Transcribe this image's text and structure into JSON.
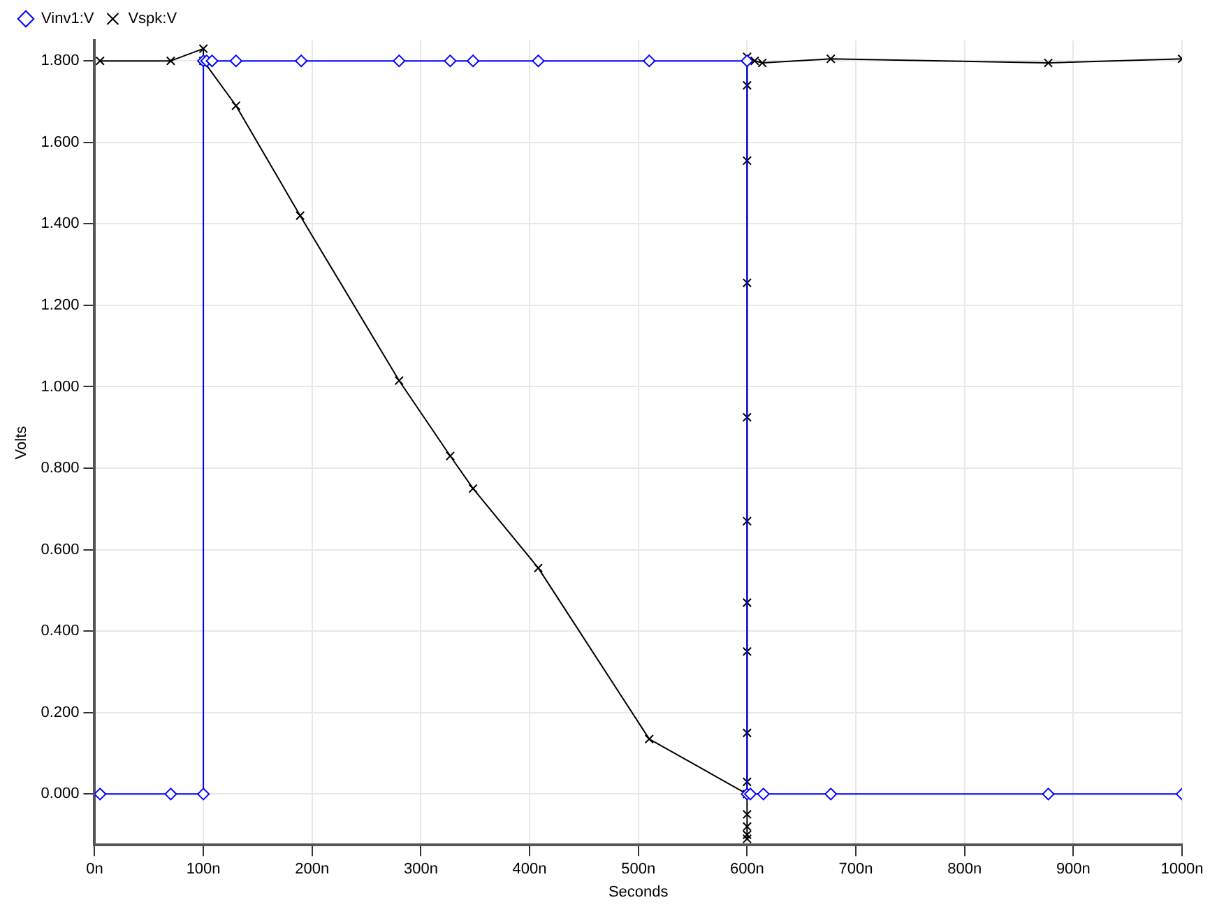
{
  "chart_data": {
    "type": "line",
    "xlabel": "Seconds",
    "ylabel": "Volts",
    "xlim": [
      0,
      1000
    ],
    "ylim": [
      -0.125,
      1.85
    ],
    "xticks": [
      {
        "value": 0,
        "label": "0n"
      },
      {
        "value": 100,
        "label": "100n"
      },
      {
        "value": 200,
        "label": "200n"
      },
      {
        "value": 300,
        "label": "300n"
      },
      {
        "value": 400,
        "label": "400n"
      },
      {
        "value": 500,
        "label": "500n"
      },
      {
        "value": 600,
        "label": "600n"
      },
      {
        "value": 700,
        "label": "700n"
      },
      {
        "value": 800,
        "label": "800n"
      },
      {
        "value": 900,
        "label": "900n"
      },
      {
        "value": 1000,
        "label": "1000n"
      }
    ],
    "yticks": [
      {
        "value": 0,
        "label": "0.000"
      },
      {
        "value": 0.2,
        "label": "0.200"
      },
      {
        "value": 0.4,
        "label": "0.400"
      },
      {
        "value": 0.6,
        "label": "0.600"
      },
      {
        "value": 0.8,
        "label": "0.800"
      },
      {
        "value": 1,
        "label": "1.000"
      },
      {
        "value": 1.2,
        "label": "1.200"
      },
      {
        "value": 1.4,
        "label": "1.400"
      },
      {
        "value": 1.6,
        "label": "1.600"
      },
      {
        "value": 1.8,
        "label": "1.800"
      }
    ],
    "grid": true,
    "legend": "top left",
    "line_style": "solid",
    "series": [
      {
        "name": "Vinv1:V",
        "color": "#0000ff",
        "marker": "diamond",
        "x": [
          5,
          70,
          100,
          100,
          103,
          108,
          130,
          190,
          280,
          327,
          348,
          408,
          510,
          600,
          600,
          603,
          615,
          677,
          877,
          1000
        ],
        "values": [
          0,
          0,
          0,
          1.8,
          1.8,
          1.8,
          1.8,
          1.8,
          1.8,
          1.8,
          1.8,
          1.8,
          1.8,
          1.8,
          0,
          0,
          0,
          0,
          0,
          0
        ]
      },
      {
        "name": "Vspk:V",
        "color": "#000000",
        "marker": "cross",
        "x": [
          5,
          70,
          100,
          100,
          130,
          189,
          280,
          327,
          348,
          408,
          510,
          600,
          600,
          600,
          600,
          600,
          600,
          600,
          600,
          600,
          600,
          600,
          600,
          600,
          600,
          600,
          607,
          614,
          677,
          877,
          1000
        ],
        "values": [
          1.8,
          1.8,
          1.83,
          1.8,
          1.69,
          1.42,
          1.015,
          0.83,
          0.75,
          0.555,
          0.135,
          0,
          -0.11,
          -0.1,
          -0.08,
          -0.05,
          0.03,
          0.15,
          0.35,
          0.47,
          0.67,
          0.925,
          1.255,
          1.555,
          1.74,
          1.81,
          1.8,
          1.795,
          1.805,
          1.795,
          1.805
        ]
      }
    ]
  }
}
